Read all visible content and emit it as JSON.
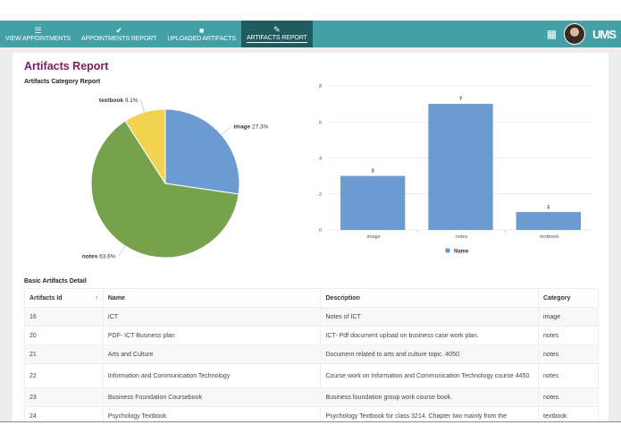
{
  "nav": {
    "tabs": [
      {
        "label": "VIEW APPOINTMENTS",
        "icon": "list-icon",
        "glyph": "☰"
      },
      {
        "label": "APPOINTMENTS REPORT",
        "icon": "check-icon",
        "glyph": "✔"
      },
      {
        "label": "UPLOADED ARTIFACTS",
        "icon": "folder-icon",
        "glyph": "■"
      },
      {
        "label": "ARTIFACTS REPORT",
        "icon": "edit-icon",
        "glyph": "✎",
        "active": true
      }
    ],
    "apps_glyph": "▦",
    "logo": "UMS"
  },
  "colors": {
    "nav": "#43a0a7",
    "nav_active": "#1f5b5f",
    "title": "#7a1e62",
    "image": "#6b9bd1",
    "notes": "#76a24e",
    "textbook": "#f2d24e",
    "bar": "#6b9bd1"
  },
  "page": {
    "title": "Artifacts Report",
    "pie_title": "Artifacts Category Report",
    "table_title": "Basic Artifacts Detail"
  },
  "chart_data": [
    {
      "type": "pie",
      "title": "Artifacts Category Report",
      "slices": [
        {
          "label": "image",
          "value": 27.3,
          "text": "27.3%"
        },
        {
          "label": "notes",
          "value": 63.6,
          "text": "63.6%"
        },
        {
          "label": "textbook",
          "value": 9.1,
          "text": "9.1%"
        }
      ]
    },
    {
      "type": "bar",
      "categories": [
        "image",
        "notes",
        "textbook"
      ],
      "values": [
        3,
        7,
        1
      ],
      "ylim": [
        0,
        8
      ],
      "yticks": [
        0,
        2,
        4,
        6,
        8
      ],
      "grid": true,
      "legend": "bottom",
      "series_name": "Name"
    }
  ],
  "table": {
    "headers": [
      "Artifacts Id",
      "Name",
      "Description",
      "Category"
    ],
    "rows": [
      [
        "16",
        "ICT",
        "Notes of ICT",
        "image"
      ],
      [
        "20",
        "PDF- ICT Business plan",
        "ICT- Pdf document upload on business case work plan.",
        "notes"
      ],
      [
        "21",
        "Arts and Culture",
        "Document related to arts and culture topic. 4050.",
        "notes"
      ],
      [
        "22",
        "Information and Communication Technology",
        "Course work on Information and Communication Technology course 4450.",
        "notes"
      ],
      [
        "23",
        "Business Foundation Coursebook",
        "Business foundation group work course book.",
        "notes"
      ],
      [
        "24",
        "Psychology Textbook",
        "Psychology Textbook for class 3214. Chapter two mainly from the",
        "textbook"
      ]
    ]
  }
}
